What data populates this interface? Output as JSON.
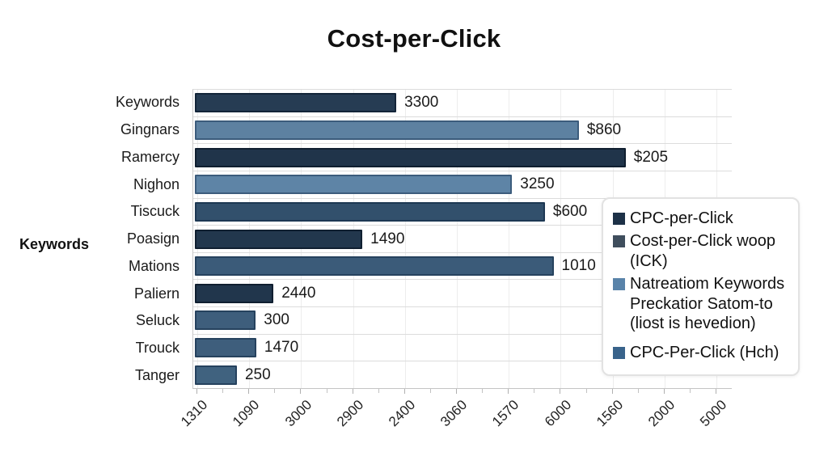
{
  "title": "Cost-per-Click",
  "colors": {
    "background": "#ffffff",
    "grid_h": "#dcdcdc",
    "grid_v": "#ededed",
    "axis": "#c4c4c4",
    "tick": "#b0b0b0",
    "text": "#1a1a1a",
    "legend_border": "#e2e2e2"
  },
  "chart_data": {
    "type": "bar",
    "orientation": "horizontal",
    "title": "Cost-per-Click",
    "ylabel": "Keywords",
    "xlabel": "",
    "grid": true,
    "categories": [
      "Keywords",
      "Gingnars",
      "Ramercy",
      "Nighon",
      "Tiscuck",
      "Poasign",
      "Mations",
      "Paliern",
      "Seluck",
      "Trouck",
      "Tanger"
    ],
    "bar_labels": [
      "3300",
      "$860",
      "$205",
      "3250",
      "$600",
      "1490",
      "1010",
      "2440",
      "300",
      "1470",
      "250"
    ],
    "bar_length_pct": [
      37.4,
      71.3,
      80.0,
      58.9,
      65.0,
      31.1,
      66.6,
      14.6,
      11.3,
      11.4,
      7.8
    ],
    "bar_fill_colors": [
      "#263c53",
      "#5d81a1",
      "#20344a",
      "#5e84a6",
      "#32506c",
      "#22374d",
      "#3b5b79",
      "#21364c",
      "#3e5e7c",
      "#3e5e7c",
      "#40627f"
    ],
    "bar_border_colors": [
      "#132539",
      "#3c5c7c",
      "#101f30",
      "#3c5c7c",
      "#1d3853",
      "#101f30",
      "#26425e",
      "#101f30",
      "#26425e",
      "#26425e",
      "#26425e"
    ],
    "x_ticks": [
      "1310",
      "1090",
      "3000",
      "2900",
      "2400",
      "3060",
      "1570",
      "6000",
      "1560",
      "2000",
      "5000"
    ],
    "legend": {
      "position": "right-center",
      "entries": [
        {
          "label": "CPC-per-Click",
          "color": "#1d3147"
        },
        {
          "label": "Cost-per-Click woop (ICK)",
          "color": "#3f4e5d"
        },
        {
          "label": "Natreatiom Keywords Preckatior Satom-to (liost is hevedion)",
          "color": "#5983a9"
        },
        {
          "label": "CPC-Per-Click (Hch)",
          "color": "#39638b"
        }
      ]
    }
  }
}
